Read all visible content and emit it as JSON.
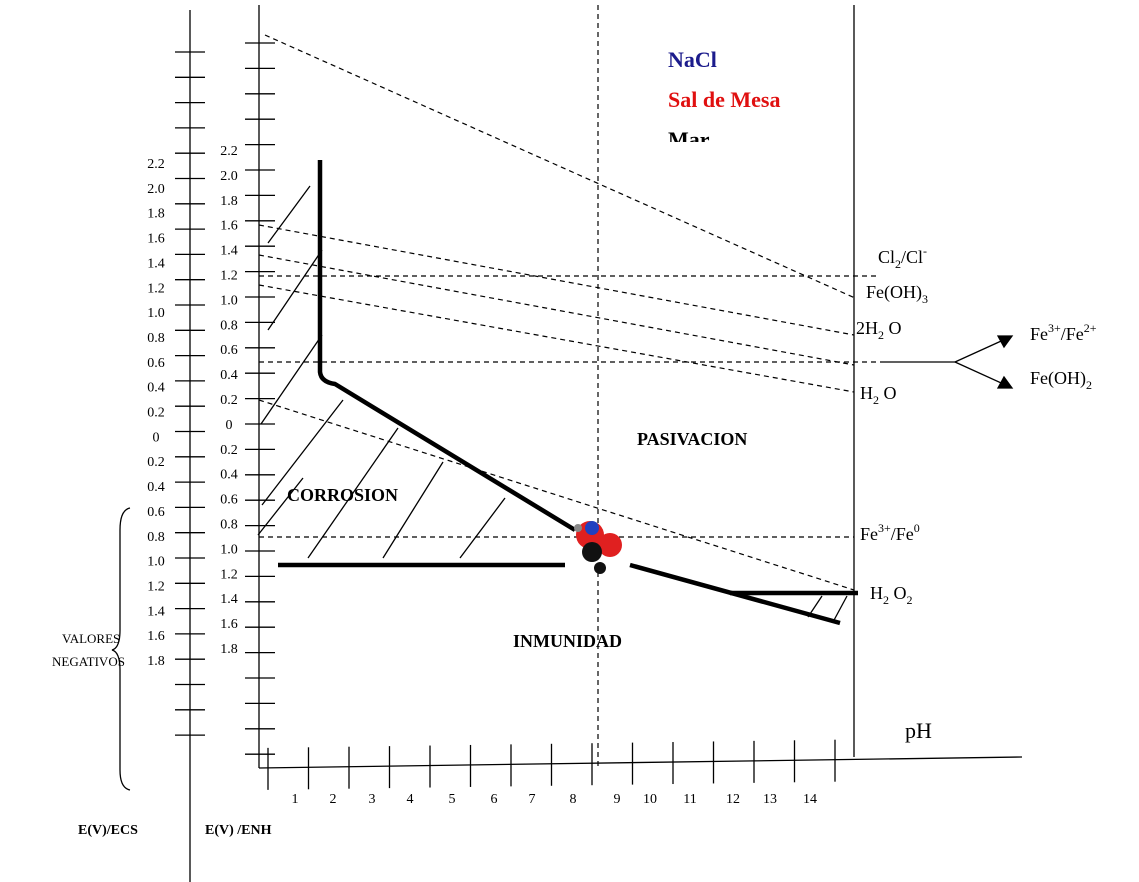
{
  "legend": {
    "nacl": "NaCl",
    "sal": "Sal de Mesa",
    "mar": "Mar"
  },
  "regions": {
    "corrosion": "CORROSION",
    "pasivacion": "PASIVACION",
    "inmunidad": "INMUNIDAD"
  },
  "axes": {
    "ecs_label": "E(V)/ECS",
    "enh_label": "E(V) /ENH",
    "ph_label": "pH",
    "negativos": [
      "VALORES",
      "NEGATIVOS"
    ],
    "ecs_ticks": [
      "2.2",
      "2.0",
      "1.8",
      "1.6",
      "1.4",
      "1.2",
      "1.0",
      "0.8",
      "0.6",
      "0.4",
      "0.2",
      "0",
      "0.2",
      "0.4",
      "0.6",
      "0.8",
      "1.0",
      "1.2",
      "1.4",
      "1.6",
      "1.8"
    ],
    "enh_ticks": [
      "2.2",
      "2.0",
      "1.8",
      "1.6",
      "1.4",
      "1.2",
      "1.0",
      "0.8",
      "0.6",
      "0.4",
      "0.2",
      "0",
      "0.2",
      "0.4",
      "0.6",
      "0.8",
      "1.0",
      "1.2",
      "1.4",
      "1.6",
      "1.8"
    ],
    "ph_ticks": [
      "1",
      "2",
      "3",
      "4",
      "5",
      "6",
      "7",
      "8",
      "9",
      "10",
      "11",
      "12",
      "13",
      "14"
    ]
  },
  "species": {
    "cl": [
      "Cl",
      "2",
      "/Cl",
      "-"
    ],
    "feoh3": [
      "Fe(OH)",
      "3"
    ],
    "h2o_2": [
      "2H",
      "2",
      " O"
    ],
    "h2o": [
      "H",
      "2",
      " O"
    ],
    "fe32": [
      "Fe",
      "3+",
      "/Fe",
      "2+"
    ],
    "feoh2": [
      "Fe(OH)",
      "2"
    ],
    "fe30": [
      "Fe",
      "3+",
      "/Fe",
      "0"
    ],
    "h2o2": [
      "H",
      "2",
      " O",
      "2"
    ]
  }
}
